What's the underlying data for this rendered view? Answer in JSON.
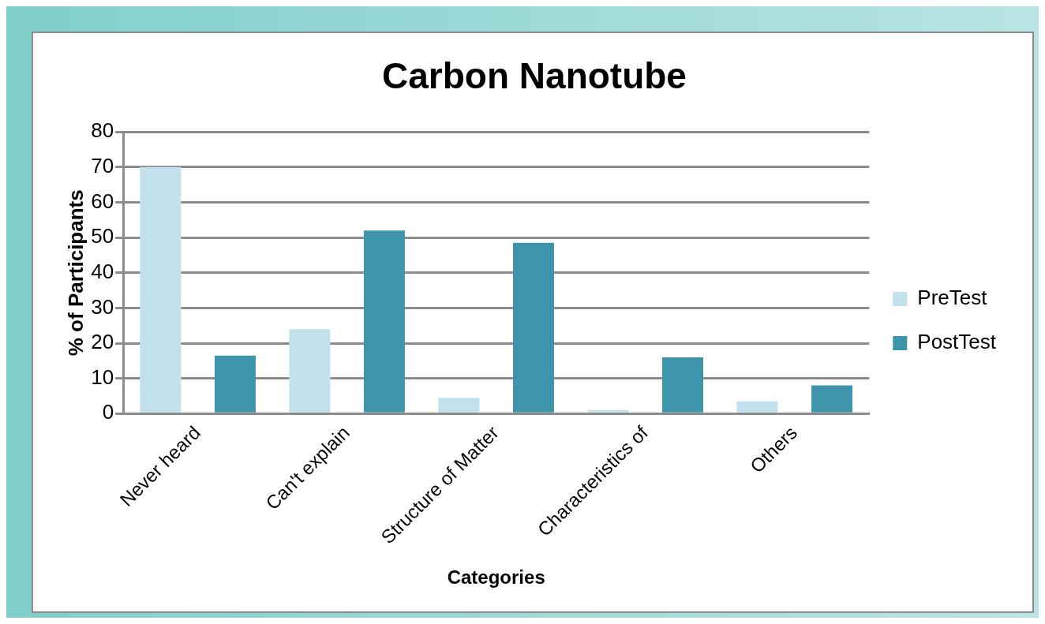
{
  "chart_data": {
    "type": "bar",
    "title": "Carbon Nanotube",
    "xlabel": "Categories",
    "ylabel": "% of Participants",
    "categories": [
      "Never heard",
      "Can't explain",
      "Structure of Matter",
      "Characteristics of",
      "Others"
    ],
    "series": [
      {
        "name": "PreTest",
        "color": "#c2e1ec",
        "values": [
          70,
          24,
          4.5,
          1,
          3.5
        ]
      },
      {
        "name": "PostTest",
        "color": "#3e95ab",
        "values": [
          16.5,
          52,
          48.5,
          16,
          8
        ]
      }
    ],
    "ylim": [
      0,
      80
    ],
    "yticks": [
      0,
      10,
      20,
      30,
      40,
      50,
      60,
      70,
      80
    ],
    "grid": "y",
    "legend": "right"
  }
}
